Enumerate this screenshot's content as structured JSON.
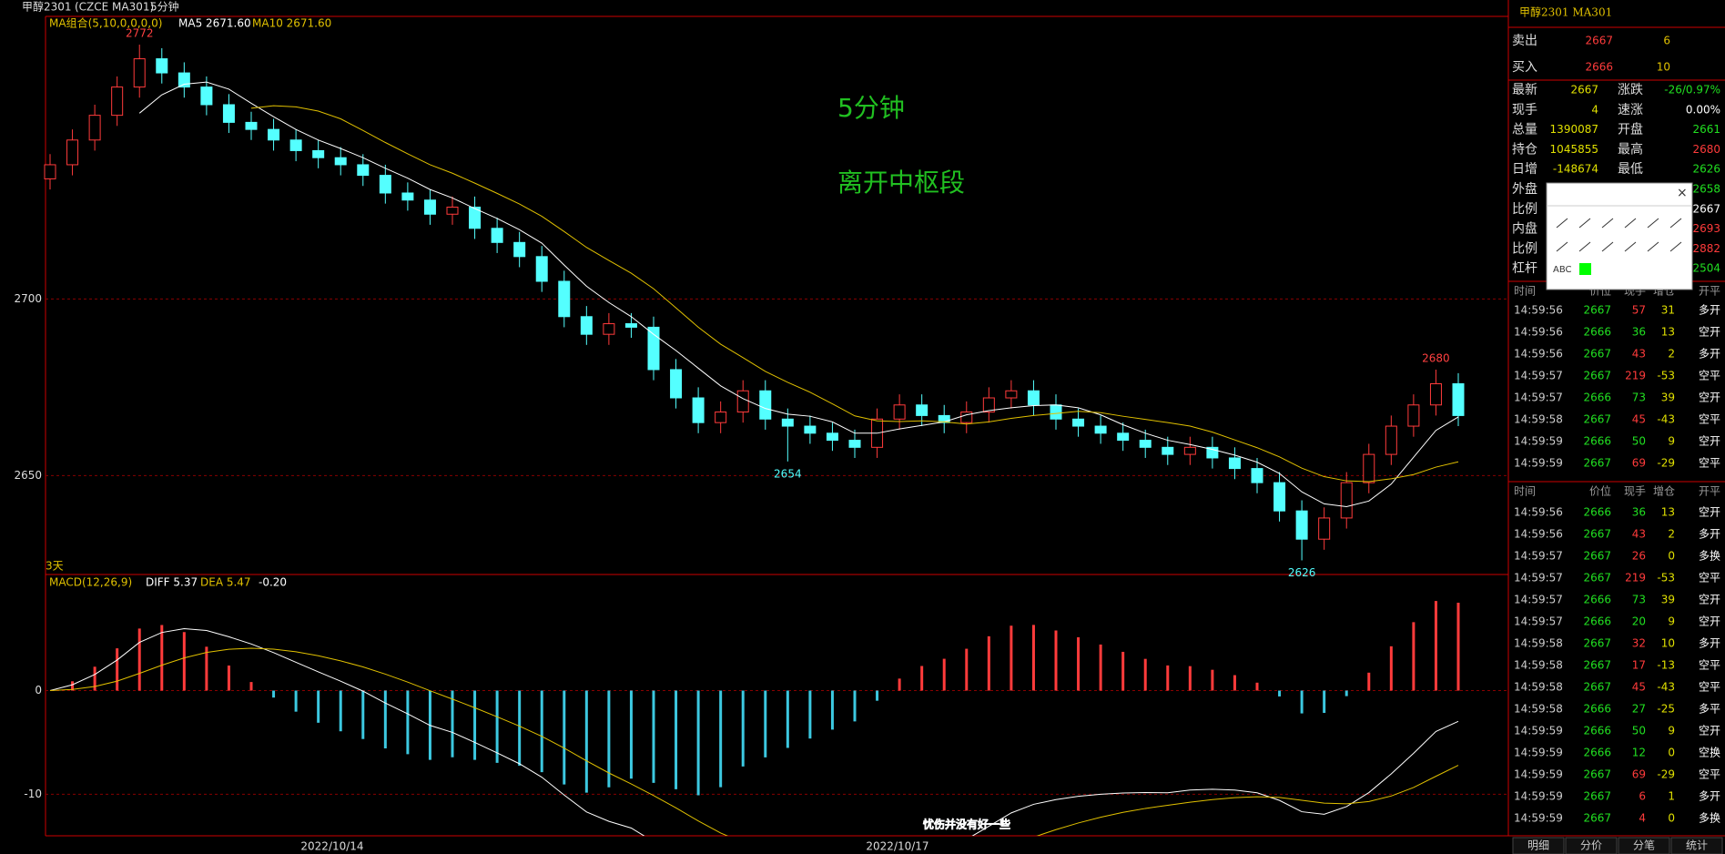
{
  "header": {
    "symbol": "甲醇2301",
    "code": "(CZCE MA301)",
    "period": "5分钟"
  },
  "chart_data": {
    "type": "candlestick",
    "indicator": "MA组合(5,10,0,0,0,0)",
    "ma5_label": "MA5 2671.60",
    "ma10_label": "MA10 2671.60",
    "ylim": [
      2622,
      2780
    ],
    "yticks": [
      2700,
      2650
    ],
    "x_labels": [
      "2022/10/14",
      "2022/10/17"
    ],
    "annotations": [
      "5分钟",
      "离开中枢段",
      "2772",
      "2654",
      "2680",
      "2626",
      "3天"
    ],
    "candles": [
      [
        2734,
        2741,
        2731,
        2738
      ],
      [
        2738,
        2748,
        2735,
        2745
      ],
      [
        2745,
        2755,
        2742,
        2752
      ],
      [
        2752,
        2763,
        2749,
        2760
      ],
      [
        2760,
        2772,
        2757,
        2768
      ],
      [
        2768,
        2771,
        2761,
        2764
      ],
      [
        2764,
        2767,
        2757,
        2760
      ],
      [
        2760,
        2763,
        2752,
        2755
      ],
      [
        2755,
        2758,
        2747,
        2750
      ],
      [
        2750,
        2753,
        2745,
        2748
      ],
      [
        2748,
        2751,
        2742,
        2745
      ],
      [
        2745,
        2748,
        2739,
        2742
      ],
      [
        2742,
        2745,
        2737,
        2740
      ],
      [
        2740,
        2743,
        2735,
        2738
      ],
      [
        2738,
        2741,
        2732,
        2735
      ],
      [
        2735,
        2738,
        2727,
        2730
      ],
      [
        2730,
        2733,
        2725,
        2728
      ],
      [
        2728,
        2731,
        2721,
        2724
      ],
      [
        2724,
        2729,
        2721,
        2726
      ],
      [
        2726,
        2729,
        2717,
        2720
      ],
      [
        2720,
        2723,
        2713,
        2716
      ],
      [
        2716,
        2719,
        2709,
        2712
      ],
      [
        2712,
        2715,
        2702,
        2705
      ],
      [
        2705,
        2708,
        2692,
        2695
      ],
      [
        2695,
        2698,
        2687,
        2690
      ],
      [
        2690,
        2696,
        2687,
        2693
      ],
      [
        2693,
        2696,
        2689,
        2692
      ],
      [
        2692,
        2695,
        2677,
        2680
      ],
      [
        2680,
        2683,
        2669,
        2672
      ],
      [
        2672,
        2675,
        2662,
        2665
      ],
      [
        2665,
        2671,
        2662,
        2668
      ],
      [
        2668,
        2677,
        2665,
        2674
      ],
      [
        2674,
        2677,
        2663,
        2666
      ],
      [
        2666,
        2669,
        2654,
        2664
      ],
      [
        2664,
        2667,
        2659,
        2662
      ],
      [
        2662,
        2665,
        2657,
        2660
      ],
      [
        2660,
        2663,
        2655,
        2658
      ],
      [
        2658,
        2669,
        2655,
        2666
      ],
      [
        2666,
        2673,
        2663,
        2670
      ],
      [
        2670,
        2673,
        2664,
        2667
      ],
      [
        2667,
        2670,
        2662,
        2665
      ],
      [
        2665,
        2671,
        2662,
        2668
      ],
      [
        2668,
        2675,
        2665,
        2672
      ],
      [
        2672,
        2677,
        2669,
        2674
      ],
      [
        2674,
        2677,
        2667,
        2670
      ],
      [
        2670,
        2673,
        2663,
        2666
      ],
      [
        2666,
        2669,
        2661,
        2664
      ],
      [
        2664,
        2667,
        2659,
        2662
      ],
      [
        2662,
        2665,
        2657,
        2660
      ],
      [
        2660,
        2663,
        2655,
        2658
      ],
      [
        2658,
        2661,
        2653,
        2656
      ],
      [
        2656,
        2661,
        2653,
        2658
      ],
      [
        2658,
        2661,
        2652,
        2655
      ],
      [
        2655,
        2658,
        2649,
        2652
      ],
      [
        2652,
        2655,
        2645,
        2648
      ],
      [
        2648,
        2651,
        2637,
        2640
      ],
      [
        2640,
        2643,
        2626,
        2632
      ],
      [
        2632,
        2641,
        2629,
        2638
      ],
      [
        2638,
        2651,
        2635,
        2648
      ],
      [
        2648,
        2659,
        2645,
        2656
      ],
      [
        2656,
        2667,
        2653,
        2664
      ],
      [
        2664,
        2673,
        2661,
        2670
      ],
      [
        2670,
        2680,
        2667,
        2676
      ],
      [
        2676,
        2679,
        2664,
        2667
      ]
    ],
    "macd": {
      "label": "MACD(12,26,9)",
      "diff": "DIFF 5.37",
      "dea": "DEA 5.47",
      "macd": "-0.20",
      "ylim": [
        -14,
        10.4
      ],
      "yticks": [
        0,
        -10
      ]
    }
  },
  "subtitle": "忧伤并没有好一些",
  "quote": {
    "title": "甲醇2301  MA301",
    "sell": [
      "卖出",
      2667,
      6
    ],
    "buy": [
      "买入",
      2666,
      10
    ],
    "stats_left": [
      [
        "最新",
        2667
      ],
      [
        "现手",
        4
      ],
      [
        "总量",
        1390087
      ],
      [
        "持仓",
        1045855
      ],
      [
        "日增",
        -148674
      ],
      [
        "外盘"
      ],
      [
        "比例"
      ],
      [
        "内盘"
      ],
      [
        "比例"
      ],
      [
        "杠杆"
      ]
    ],
    "stats_right": [
      [
        "涨跌",
        "-26/0.97%"
      ],
      [
        "速涨",
        "0.00%"
      ],
      [
        "开盘",
        2661
      ],
      [
        "最高",
        2680
      ],
      [
        "最低",
        2626
      ],
      [
        2658
      ],
      [
        2667
      ],
      [
        2693
      ],
      [
        2882
      ],
      [
        2504
      ]
    ]
  },
  "tools": {
    "abc": "ABC"
  },
  "tables": [
    {
      "header": [
        "时间",
        "价位",
        "现手",
        "增仓",
        "开平"
      ],
      "rows": [
        [
          "14:59:56",
          2667,
          57,
          31,
          "多开"
        ],
        [
          "14:59:56",
          2666,
          36,
          13,
          "空开"
        ],
        [
          "14:59:56",
          2667,
          43,
          2,
          "多开"
        ],
        [
          "14:59:57",
          2667,
          219,
          -53,
          "空平"
        ],
        [
          "14:59:57",
          2666,
          73,
          39,
          "空开"
        ],
        [
          "14:59:58",
          2667,
          45,
          -43,
          "空平"
        ],
        [
          "14:59:59",
          2666,
          50,
          9,
          "空开"
        ],
        [
          "14:59:59",
          2667,
          69,
          -29,
          "空平"
        ]
      ]
    },
    {
      "header": [
        "时间",
        "价位",
        "现手",
        "增仓",
        "开平"
      ],
      "rows": [
        [
          "14:59:56",
          2666,
          36,
          13,
          "空开"
        ],
        [
          "14:59:56",
          2667,
          43,
          2,
          "多开"
        ],
        [
          "14:59:57",
          2667,
          26,
          0,
          "多换"
        ],
        [
          "14:59:57",
          2667,
          219,
          -53,
          "空平"
        ],
        [
          "14:59:57",
          2666,
          73,
          39,
          "空开"
        ],
        [
          "14:59:57",
          2666,
          20,
          9,
          "空开"
        ],
        [
          "14:59:58",
          2667,
          32,
          10,
          "多开"
        ],
        [
          "14:59:58",
          2667,
          17,
          -13,
          "空平"
        ],
        [
          "14:59:58",
          2667,
          45,
          -43,
          "空平"
        ],
        [
          "14:59:58",
          2666,
          27,
          -25,
          "多平"
        ],
        [
          "14:59:59",
          2666,
          50,
          9,
          "空开"
        ],
        [
          "14:59:59",
          2666,
          12,
          0,
          "空换"
        ],
        [
          "14:59:59",
          2667,
          69,
          -29,
          "空平"
        ],
        [
          "14:59:59",
          2667,
          6,
          1,
          "多开"
        ],
        [
          "14:59:59",
          2667,
          4,
          0,
          "多换"
        ]
      ]
    }
  ],
  "tabs": [
    "明细",
    "分价",
    "分笔",
    "统计"
  ]
}
